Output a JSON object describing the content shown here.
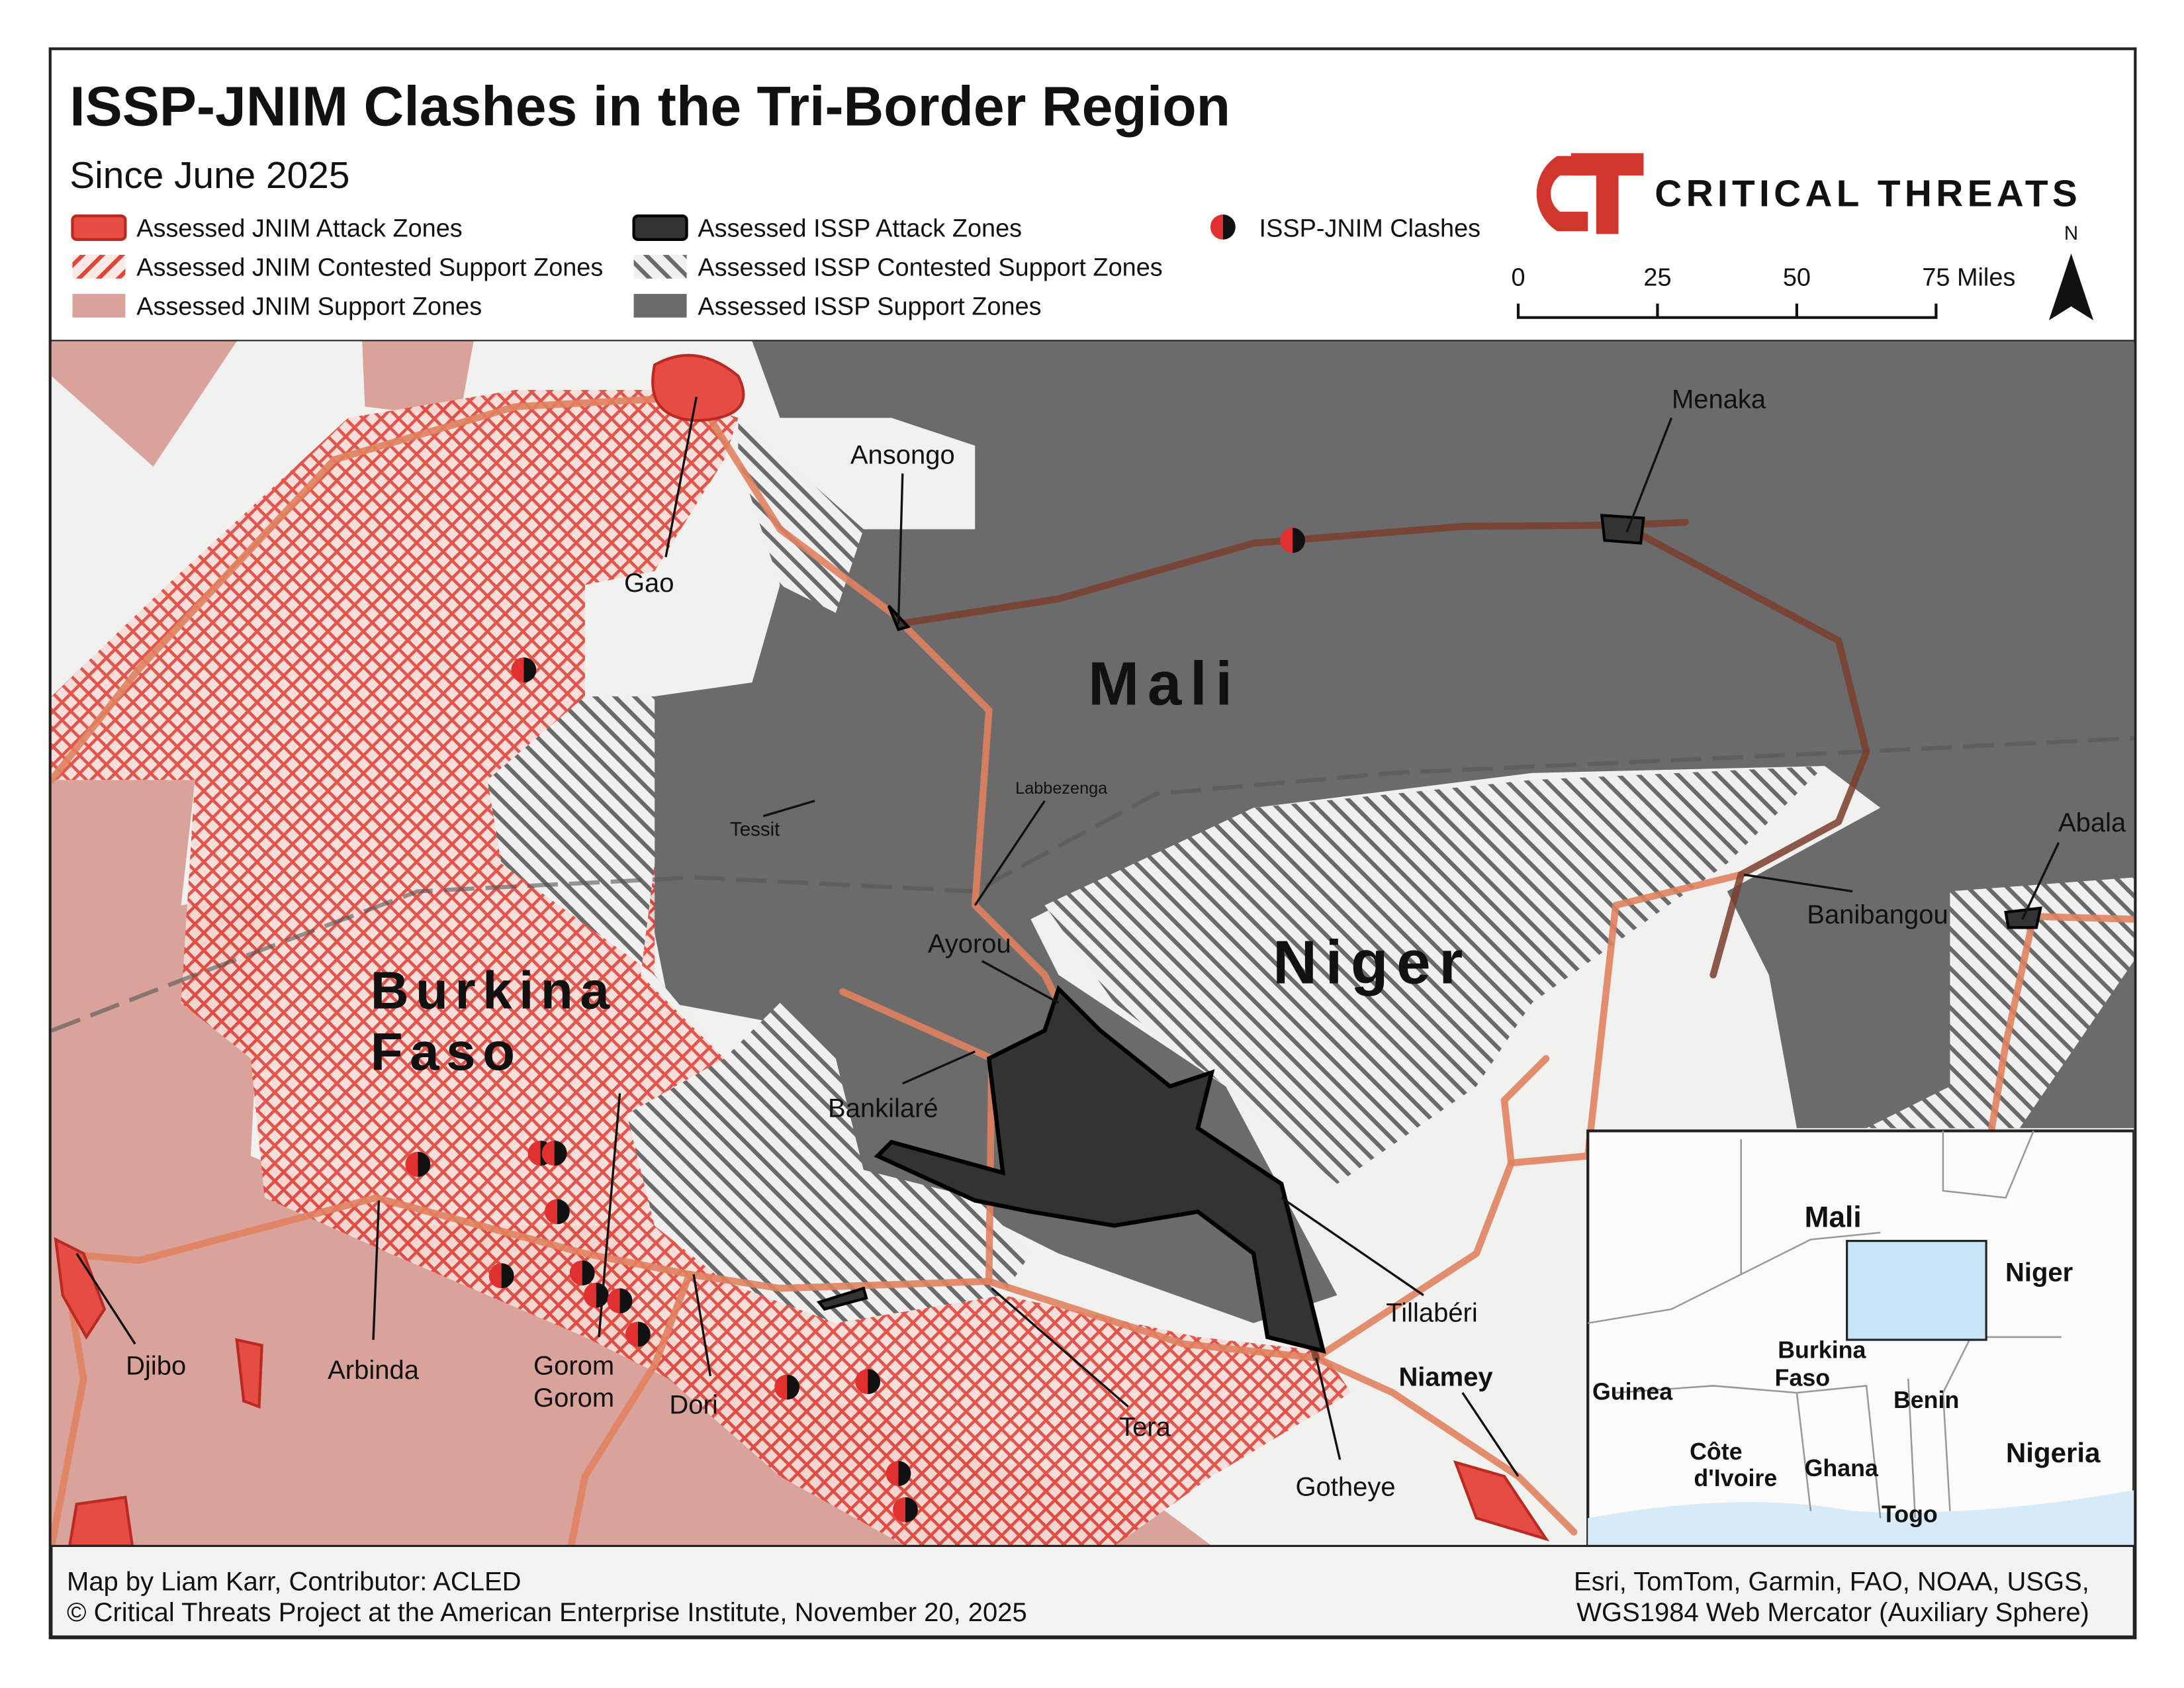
{
  "header": {
    "title": "ISSP-JNIM Clashes in the Tri-Border Region",
    "subtitle": "Since June 2025"
  },
  "legend": {
    "items": [
      "Assessed JNIM Attack Zones",
      "Assessed JNIM Contested Support Zones",
      "Assessed JNIM Support Zones",
      "Assessed ISSP Attack Zones",
      "Assessed ISSP Contested Support Zones",
      "Assessed ISSP Support Zones",
      "ISSP-JNIM Clashes"
    ]
  },
  "logo": {
    "text": "CRITICAL THREATS"
  },
  "scale_bar": {
    "labels": [
      "0",
      "25",
      "50",
      "75 Miles"
    ]
  },
  "north_arrow": {
    "label": "N"
  },
  "map": {
    "countries": {
      "mali": "Mali",
      "niger": "Niger",
      "burkina_faso": [
        "Burkina",
        "Faso"
      ]
    },
    "places": [
      "Gao",
      "Ansongo",
      "Menaka",
      "Tessit",
      "Labbezenga",
      "Ayorou",
      "Abala",
      "Banibangou",
      "Bankilaré",
      "Tillabéri",
      "Djibo",
      "Arbinda",
      [
        "Gorom",
        "Gorom"
      ],
      "Dori",
      "Tera",
      "Niamey",
      "Gotheye"
    ]
  },
  "inset": {
    "labels": [
      "Mali",
      "Niger",
      [
        "Burkina",
        "Faso"
      ],
      "Guinea",
      "Benin",
      [
        "Côte",
        "d'Ivoire"
      ],
      "Ghana",
      "Nigeria",
      "Togo"
    ]
  },
  "footer": {
    "left": [
      "Map by Liam Karr, Contributor: ACLED",
      "© Critical Threats Project at the American Enterprise Institute, November 20, 2025"
    ],
    "right": [
      "Esri, TomTom, Garmin, FAO, NOAA, USGS,",
      "WGS1984 Web Mercator (Auxiliary Sphere)"
    ]
  }
}
